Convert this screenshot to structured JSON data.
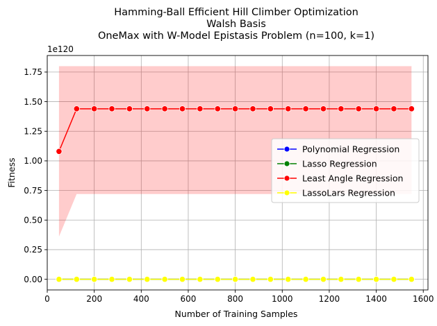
{
  "chart_data": {
    "type": "line",
    "title_lines": [
      "Hamming-Ball Efficient Hill Climber Optimization",
      "Walsh Basis",
      "OneMax with W-Model Epistasis Problem (n=100, k=1)"
    ],
    "xlabel": "Number of Training Samples",
    "ylabel": "Fitness",
    "y_offset_label": "1e120",
    "xlim": [
      0,
      1620
    ],
    "ylim": [
      -0.09,
      1.89
    ],
    "x_ticks": [
      0,
      200,
      400,
      600,
      800,
      1000,
      1200,
      1400,
      1600
    ],
    "y_ticks": [
      0.0,
      0.25,
      0.5,
      0.75,
      1.0,
      1.25,
      1.5,
      1.75
    ],
    "y_tick_labels": [
      "0.00",
      "0.25",
      "0.50",
      "0.75",
      "1.00",
      "1.25",
      "1.50",
      "1.75"
    ],
    "grid": true,
    "legend_position": "center-right",
    "x": [
      50,
      125,
      200,
      275,
      350,
      425,
      500,
      575,
      650,
      725,
      800,
      875,
      950,
      1025,
      1100,
      1175,
      1250,
      1325,
      1400,
      1475,
      1550
    ],
    "series": [
      {
        "name": "Polynomial Regression",
        "color": "#0000ff",
        "values": [
          0,
          0,
          0,
          0,
          0,
          0,
          0,
          0,
          0,
          0,
          0,
          0,
          0,
          0,
          0,
          0,
          0,
          0,
          0,
          0,
          0
        ]
      },
      {
        "name": "Lasso Regression",
        "color": "#008000",
        "values": [
          0,
          0,
          0,
          0,
          0,
          0,
          0,
          0,
          0,
          0,
          0,
          0,
          0,
          0,
          0,
          0,
          0,
          0,
          0,
          0,
          0
        ]
      },
      {
        "name": "Least Angle Regression",
        "color": "#ff0000",
        "values": [
          1.08,
          1.44,
          1.44,
          1.44,
          1.44,
          1.44,
          1.44,
          1.44,
          1.44,
          1.44,
          1.44,
          1.44,
          1.44,
          1.44,
          1.44,
          1.44,
          1.44,
          1.44,
          1.44,
          1.44,
          1.44
        ],
        "band_upper": [
          1.8,
          1.8,
          1.8,
          1.8,
          1.8,
          1.8,
          1.8,
          1.8,
          1.8,
          1.8,
          1.8,
          1.8,
          1.8,
          1.8,
          1.8,
          1.8,
          1.8,
          1.8,
          1.8,
          1.8,
          1.8
        ],
        "band_lower": [
          0.36,
          0.72,
          0.72,
          0.72,
          0.72,
          0.72,
          0.72,
          0.72,
          0.72,
          0.72,
          0.72,
          0.72,
          0.72,
          0.72,
          0.72,
          0.72,
          0.72,
          0.72,
          0.72,
          0.72,
          0.72
        ]
      },
      {
        "name": "LassoLars Regression",
        "color": "#ffff00",
        "values": [
          0,
          0,
          0,
          0,
          0,
          0,
          0,
          0,
          0,
          0,
          0,
          0,
          0,
          0,
          0,
          0,
          0,
          0,
          0,
          0,
          0
        ]
      }
    ]
  }
}
